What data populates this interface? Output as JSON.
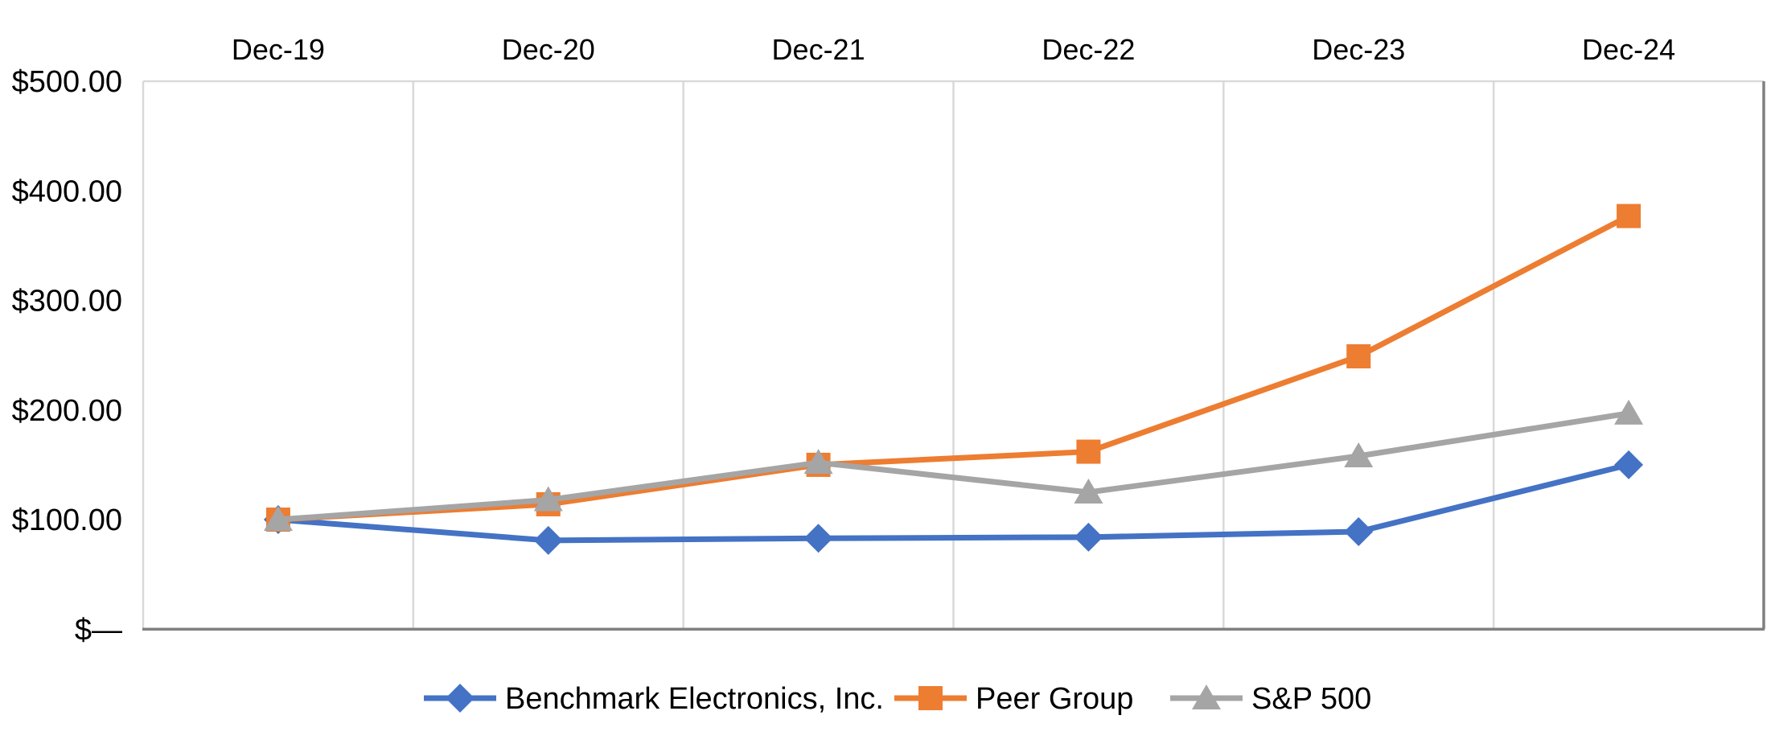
{
  "chart_data": {
    "type": "line",
    "title": "",
    "categories": [
      "Dec-19",
      "Dec-20",
      "Dec-21",
      "Dec-22",
      "Dec-23",
      "Dec-24"
    ],
    "y_tick_labels": [
      "$500.00",
      "$400.00",
      "$300.00",
      "$200.00",
      "$100.00",
      "$—"
    ],
    "y_tick_values": [
      500,
      400,
      300,
      200,
      100,
      0
    ],
    "ylim": [
      0,
      500
    ],
    "grid": "vertical-only",
    "x_axis_position": "top",
    "legend_position": "bottom",
    "series": [
      {
        "name": "Benchmark Electronics, Inc.",
        "marker": "diamond",
        "color": "#4472C4",
        "values": [
          100.0,
          81.0,
          83.0,
          84.0,
          89.0,
          150.0
        ]
      },
      {
        "name": "Peer Group",
        "marker": "square",
        "color": "#ED7D31",
        "values": [
          100.0,
          114.0,
          150.0,
          162.0,
          249.0,
          377.0
        ]
      },
      {
        "name": "S&P 500",
        "marker": "triangle",
        "color": "#A5A5A5",
        "values": [
          100.0,
          118.0,
          152.0,
          125.0,
          158.0,
          197.0
        ]
      }
    ],
    "colors": {
      "background": "#FFFFFF",
      "gridline": "#D9D9D9",
      "border_light": "#D9D9D9",
      "axis_dark": "#808080",
      "text": "#000000"
    }
  }
}
